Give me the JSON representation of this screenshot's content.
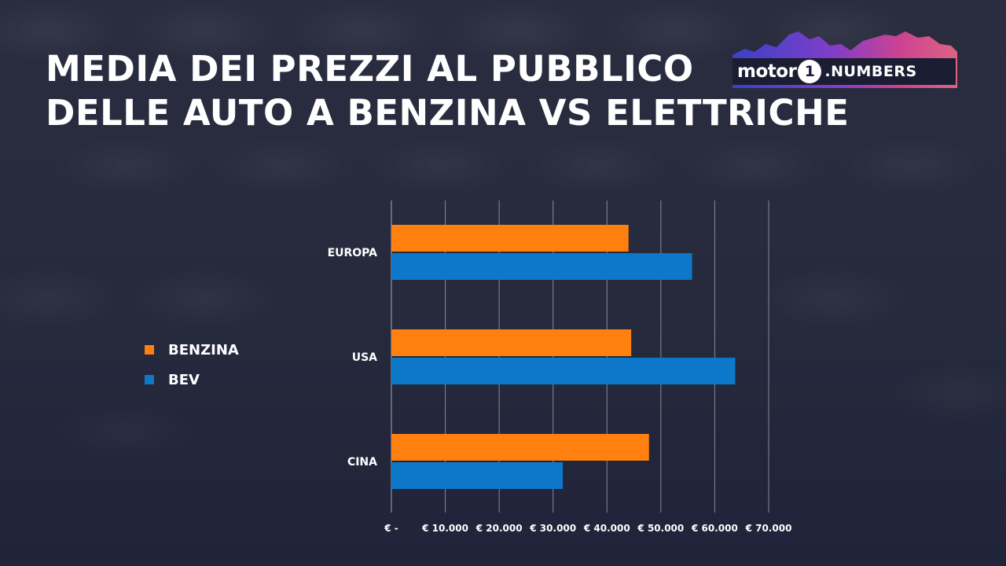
{
  "header": {
    "title_line1": "MEDIA DEI PREZZI AL PUBBLICO",
    "title_line2": "DELLE AUTO A BENZINA VS ELETTRICHE"
  },
  "logo": {
    "motor": "motor",
    "one": "1",
    "numbers": ".NUMBERS"
  },
  "legend": {
    "items": [
      {
        "label": "BENZINA",
        "color": "#ff7f0f"
      },
      {
        "label": "BEV",
        "color": "#0d77c9"
      }
    ]
  },
  "chart_data": {
    "type": "bar",
    "orientation": "horizontal",
    "categories": [
      "EUROPA",
      "USA",
      "CINA"
    ],
    "series": [
      {
        "name": "BENZINA",
        "color": "#ff7f0f",
        "values": [
          44000,
          44500,
          47800
        ]
      },
      {
        "name": "BEV",
        "color": "#0d77c9",
        "values": [
          55800,
          63800,
          31800
        ]
      }
    ],
    "xlim": [
      0,
      70000
    ],
    "xticks": [
      0,
      10000,
      20000,
      30000,
      40000,
      50000,
      60000,
      70000
    ],
    "xtick_labels": [
      "€ -",
      "€ 10.000",
      "€ 20.000",
      "€ 30.000",
      "€ 40.000",
      "€ 50.000",
      "€ 60.000",
      "€ 70.000"
    ],
    "grid": true,
    "legend_position": "left"
  }
}
